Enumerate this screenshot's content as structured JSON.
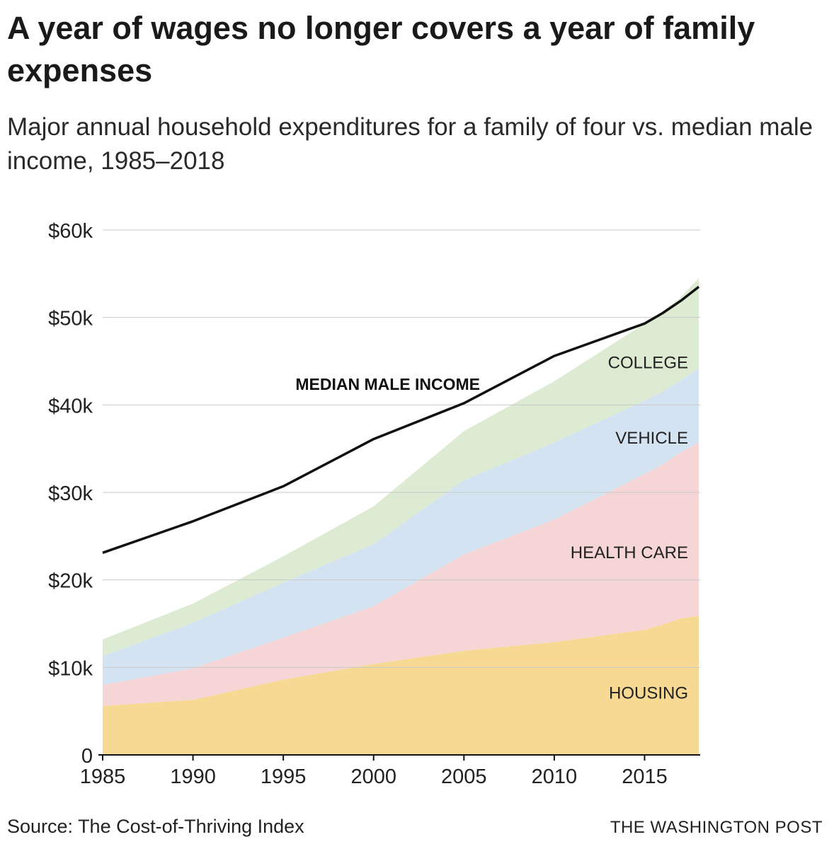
{
  "header": {
    "title": "A year of wages no longer covers a year of family expenses",
    "subtitle": "Major annual household expenditures for a family of four vs. median male income, 1985–2018"
  },
  "footer": {
    "source": "Source: The Cost-of-Thriving Index",
    "credit": "THE WASHINGTON POST"
  },
  "chart_data": {
    "type": "area",
    "stacked": true,
    "title": "A year of wages no longer covers a year of family expenses",
    "subtitle": "Major annual household expenditures for a family of four vs. median male income, 1985–2018",
    "x": [
      1985,
      1990,
      1995,
      2000,
      2005,
      2010,
      2015,
      2016,
      2017,
      2018
    ],
    "xlim": [
      1985,
      2018
    ],
    "ylim": [
      0,
      60000
    ],
    "x_ticks": [
      1985,
      1990,
      1995,
      2000,
      2005,
      2010,
      2015
    ],
    "x_tick_labels": [
      "1985",
      "1990",
      "1995",
      "2000",
      "2005",
      "2010",
      "2015"
    ],
    "y_ticks": [
      0,
      10000,
      20000,
      30000,
      40000,
      50000,
      60000
    ],
    "y_tick_labels": [
      "0",
      "$10k",
      "$20k",
      "$30k",
      "$40k",
      "$50k",
      "$60k"
    ],
    "grid": true,
    "legend": "inline labels",
    "series": [
      {
        "name": "HOUSING",
        "color": "#f7d994",
        "values": [
          5600,
          6300,
          8600,
          10400,
          11900,
          12900,
          14300,
          14900,
          15600,
          15900
        ]
      },
      {
        "name": "HEALTH CARE",
        "color": "#f5d5d6",
        "values": [
          2400,
          3600,
          4800,
          6600,
          11000,
          14000,
          17800,
          18300,
          19000,
          19800
        ]
      },
      {
        "name": "VEHICLE",
        "color": "#d4e3f2",
        "values": [
          3300,
          5200,
          6300,
          7100,
          8500,
          8800,
          8400,
          8300,
          8200,
          8500
        ]
      },
      {
        "name": "COLLEGE",
        "color": "#dcebd2",
        "values": [
          1900,
          2200,
          3000,
          4300,
          5600,
          7000,
          8800,
          9200,
          9500,
          10300
        ]
      }
    ],
    "line": {
      "name": "MEDIAN MALE INCOME",
      "color": "#111111",
      "values": [
        23100,
        26700,
        30700,
        36100,
        40200,
        45600,
        49300,
        50500,
        51900,
        53500
      ]
    }
  }
}
